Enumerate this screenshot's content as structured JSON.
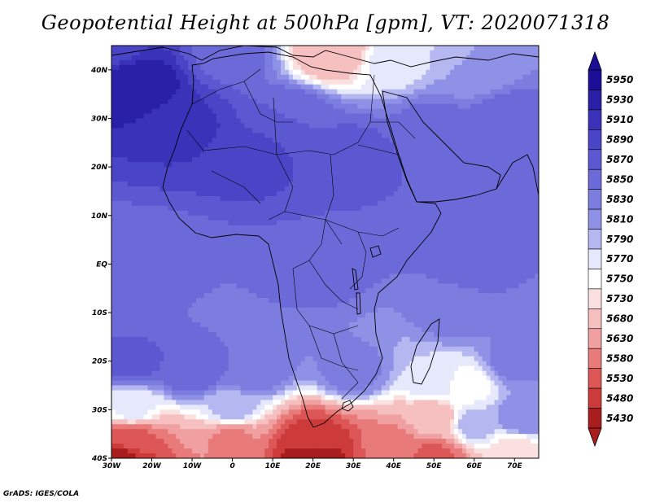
{
  "title": "Geopotential Height at 500hPa [gpm], VT: 2020071318",
  "credit": "GrADS: IGES/COLA",
  "chart_data": {
    "type": "heatmap",
    "variable": "Geopotential Height",
    "level": "500hPa",
    "units": "gpm",
    "valid_time": "2020071318",
    "lon_range": [
      -30,
      76
    ],
    "lat_range": [
      -40,
      45
    ],
    "lat_ticks": [
      {
        "value": 40,
        "label": "40N"
      },
      {
        "value": 30,
        "label": "30N"
      },
      {
        "value": 20,
        "label": "20N"
      },
      {
        "value": 10,
        "label": "10N"
      },
      {
        "value": 0,
        "label": "EQ"
      },
      {
        "value": -10,
        "label": "10S"
      },
      {
        "value": -20,
        "label": "20S"
      },
      {
        "value": -30,
        "label": "30S"
      },
      {
        "value": -40,
        "label": "40S"
      }
    ],
    "lon_ticks": [
      {
        "value": -30,
        "label": "30W"
      },
      {
        "value": -20,
        "label": "20W"
      },
      {
        "value": -10,
        "label": "10W"
      },
      {
        "value": 0,
        "label": "0"
      },
      {
        "value": 10,
        "label": "10E"
      },
      {
        "value": 20,
        "label": "20E"
      },
      {
        "value": 30,
        "label": "30E"
      },
      {
        "value": 40,
        "label": "40E"
      },
      {
        "value": 50,
        "label": "50E"
      },
      {
        "value": 60,
        "label": "60E"
      },
      {
        "value": 70,
        "label": "70E"
      }
    ],
    "colorbar": {
      "levels": [
        5950,
        5930,
        5910,
        5890,
        5870,
        5850,
        5830,
        5810,
        5790,
        5770,
        5750,
        5730,
        5680,
        5630,
        5580,
        5530,
        5480,
        5430
      ],
      "colors": [
        "#1a0f96",
        "#2a20a8",
        "#3a32b8",
        "#4a45c6",
        "#5c58d2",
        "#6c6ad9",
        "#7d7ddf",
        "#8f91e6",
        "#b4b7f0",
        "#e6e8fb",
        "#ffffff",
        "#fbe0e0",
        "#f6c0c0",
        "#f0a0a0",
        "#e87a7a",
        "#dc5656",
        "#cc3a3a",
        "#a81e1e"
      ],
      "top_arrow_color": "#1a0f96",
      "bottom_arrow_color": "#a81e1e"
    },
    "field_anchors": [
      {
        "lon": -24,
        "lat": 37,
        "value": 5950
      },
      {
        "lon": -12,
        "lat": 28,
        "value": 5915
      },
      {
        "lon": 5,
        "lat": 22,
        "value": 5900
      },
      {
        "lon": 15,
        "lat": 30,
        "value": 5870
      },
      {
        "lon": 30,
        "lat": 22,
        "value": 5880
      },
      {
        "lon": 50,
        "lat": 28,
        "value": 5860
      },
      {
        "lon": 68,
        "lat": 30,
        "value": 5865
      },
      {
        "lon": 25,
        "lat": 44,
        "value": 5690
      },
      {
        "lon": 40,
        "lat": 42,
        "value": 5780
      },
      {
        "lon": 60,
        "lat": 40,
        "value": 5810
      },
      {
        "lon": -30,
        "lat": 45,
        "value": 5900
      },
      {
        "lon": 0,
        "lat": 44,
        "value": 5860
      },
      {
        "lon": 45,
        "lat": 10,
        "value": 5870
      },
      {
        "lon": -20,
        "lat": 0,
        "value": 5860
      },
      {
        "lon": 20,
        "lat": 0,
        "value": 5870
      },
      {
        "lon": 60,
        "lat": 0,
        "value": 5860
      },
      {
        "lon": -20,
        "lat": -8,
        "value": 5850
      },
      {
        "lon": 10,
        "lat": -12,
        "value": 5850
      },
      {
        "lon": 55,
        "lat": -10,
        "value": 5840
      },
      {
        "lon": -25,
        "lat": -20,
        "value": 5880
      },
      {
        "lon": -10,
        "lat": -22,
        "value": 5870
      },
      {
        "lon": 5,
        "lat": -22,
        "value": 5850
      },
      {
        "lon": 30,
        "lat": -22,
        "value": 5840
      },
      {
        "lon": 50,
        "lat": -24,
        "value": 5790
      },
      {
        "lon": 58,
        "lat": -25,
        "value": 5760
      },
      {
        "lon": 70,
        "lat": -20,
        "value": 5840
      },
      {
        "lon": -25,
        "lat": -30,
        "value": 5780
      },
      {
        "lon": 0,
        "lat": -30,
        "value": 5800
      },
      {
        "lon": 50,
        "lat": -32,
        "value": 5700
      },
      {
        "lon": 60,
        "lat": -33,
        "value": 5800
      },
      {
        "lon": 72,
        "lat": -32,
        "value": 5830
      },
      {
        "lon": -25,
        "lat": -36,
        "value": 5560
      },
      {
        "lon": 0,
        "lat": -36,
        "value": 5620
      },
      {
        "lon": 20,
        "lat": -37,
        "value": 5500
      },
      {
        "lon": 40,
        "lat": -38,
        "value": 5600
      },
      {
        "lon": 70,
        "lat": -38,
        "value": 5740
      },
      {
        "lon": -28,
        "lat": -40,
        "value": 5450
      },
      {
        "lon": 20,
        "lat": -40,
        "value": 5430
      },
      {
        "lon": 50,
        "lat": -40,
        "value": 5560
      }
    ]
  }
}
